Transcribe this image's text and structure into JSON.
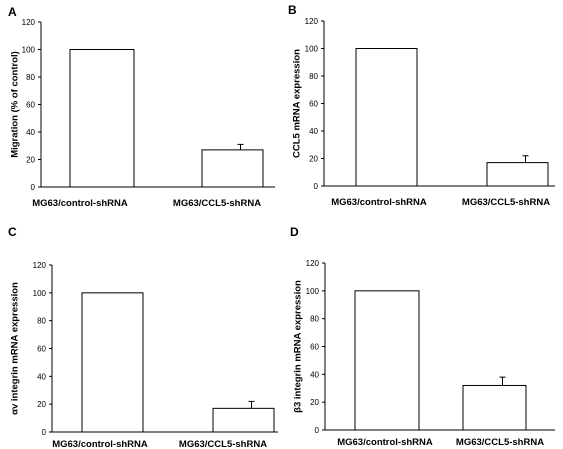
{
  "chart_data": [
    {
      "panel": "A",
      "type": "bar",
      "categories": [
        "MG63/control-shRNA",
        "MG63/CCL5-shRNA"
      ],
      "values": [
        100,
        27
      ],
      "errors": [
        0,
        4
      ],
      "ylabel": "Migration (% of control)",
      "ylim": [
        0,
        120
      ],
      "yticks": [
        "0",
        "20",
        "40",
        "60",
        "80",
        "100",
        "120"
      ],
      "bar_color": "#ffffff",
      "grid": false
    },
    {
      "panel": "B",
      "type": "bar",
      "categories": [
        "MG63/control-shRNA",
        "MG63/CCL5-shRNA"
      ],
      "values": [
        100,
        17
      ],
      "errors": [
        0,
        5
      ],
      "ylabel": "CCL5 mRNA expression",
      "ylim": [
        0,
        120
      ],
      "yticks": [
        "0",
        "20",
        "40",
        "60",
        "80",
        "100",
        "120"
      ],
      "bar_color": "#ffffff",
      "grid": false
    },
    {
      "panel": "C",
      "type": "bar",
      "categories": [
        "MG63/control-shRNA",
        "MG63/CCL5-shRNA"
      ],
      "values": [
        100,
        17
      ],
      "errors": [
        0,
        5
      ],
      "ylabel": "αv integrin mRNA expression",
      "ylim": [
        0,
        120
      ],
      "yticks": [
        "0",
        "20",
        "40",
        "60",
        "80",
        "100",
        "120"
      ],
      "bar_color": "#ffffff",
      "grid": false
    },
    {
      "panel": "D",
      "type": "bar",
      "categories": [
        "MG63/control-shRNA",
        "MG63/CCL5-shRNA"
      ],
      "values": [
        100,
        32
      ],
      "errors": [
        0,
        6
      ],
      "ylabel": "β3 integrin mRNA expression",
      "ylim": [
        0,
        120
      ],
      "yticks": [
        "0",
        "20",
        "40",
        "60",
        "80",
        "100",
        "120"
      ],
      "bar_color": "#ffffff",
      "grid": false
    }
  ]
}
